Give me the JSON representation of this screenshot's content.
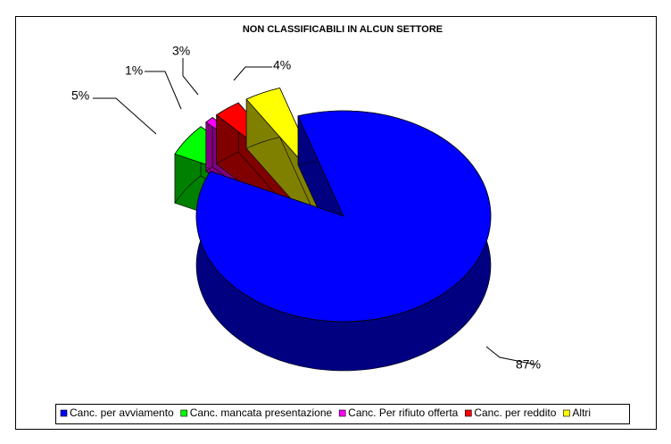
{
  "chart_data": {
    "type": "pie",
    "title": "NON CLASSIFICABILI IN ALCUN SETTORE",
    "categories": [
      "Canc. per avviamento",
      "Canc. mancata presentazione",
      "Canc. Per rifiuto offerta",
      "Canc. per reddito",
      "Altri"
    ],
    "values": [
      87,
      5,
      1,
      3,
      4
    ],
    "value_labels": [
      "87%",
      "5%",
      "1%",
      "3%",
      "4%"
    ],
    "colors": [
      "#0000ff",
      "#00ff00",
      "#ff00ff",
      "#ff0000",
      "#ffff00"
    ],
    "side_colors": [
      "#000080",
      "#008000",
      "#800080",
      "#800000",
      "#808000"
    ],
    "legend": "bottom"
  }
}
